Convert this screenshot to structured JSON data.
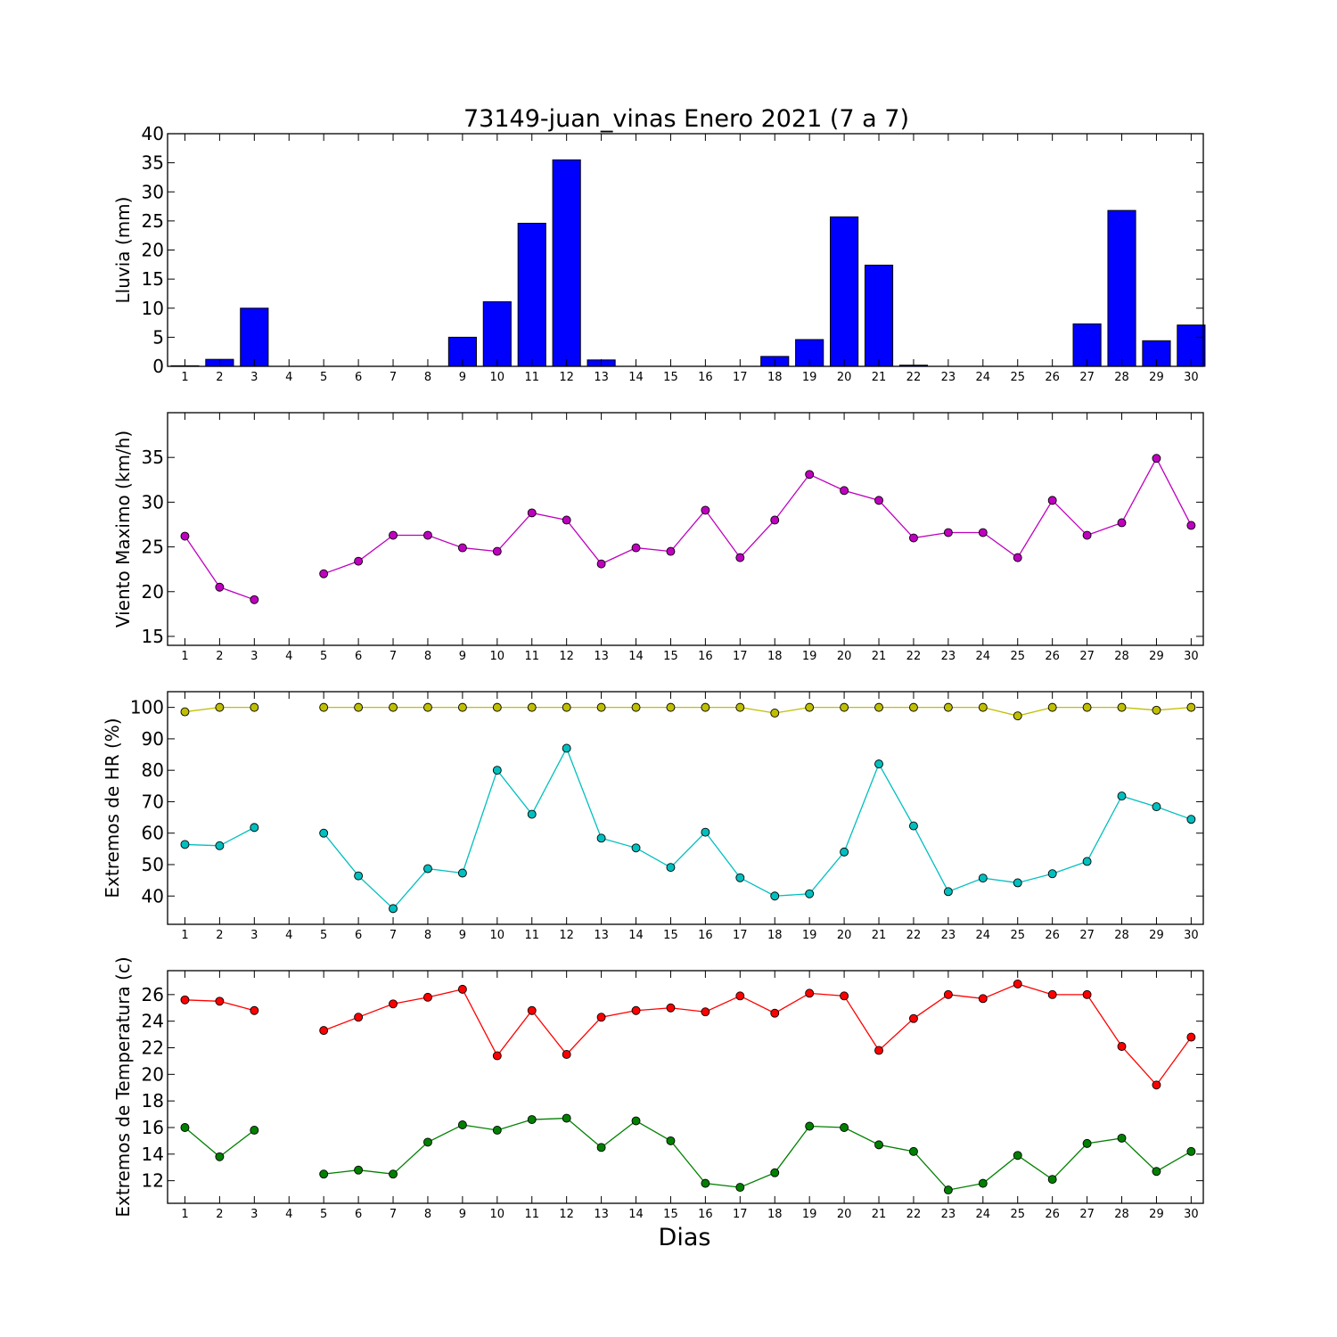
{
  "chart_data": {
    "title": "73149-juan_vinas Enero 2021  (7 a 7)",
    "xlabel": "Dias",
    "days": [
      1,
      2,
      3,
      4,
      5,
      6,
      7,
      8,
      9,
      10,
      11,
      12,
      13,
      14,
      15,
      16,
      17,
      18,
      19,
      20,
      21,
      22,
      23,
      24,
      25,
      26,
      27,
      28,
      29,
      30
    ],
    "panels": [
      {
        "id": "lluvia",
        "type": "bar",
        "ylabel": "Lluvia (mm)",
        "ylim": [
          0,
          40
        ],
        "yticks": [
          0,
          5,
          10,
          15,
          20,
          25,
          30,
          35,
          40
        ],
        "series": [
          {
            "color": "#0000ff",
            "values": [
              0.1,
              1.2,
              10.0,
              0,
              0,
              0,
              0,
              0,
              5.0,
              11.1,
              24.6,
              35.5,
              1.1,
              0,
              0,
              0,
              0,
              1.7,
              4.6,
              25.7,
              17.4,
              0.2,
              0,
              0,
              0,
              0,
              7.3,
              26.8,
              4.4,
              7.1
            ]
          }
        ]
      },
      {
        "id": "viento",
        "type": "line",
        "ylabel": "Viento Maximo (km/h)",
        "ylim": [
          14,
          40
        ],
        "yticks": [
          15,
          20,
          25,
          30,
          35
        ],
        "series": [
          {
            "color": "#bf00bf",
            "values": [
              26.2,
              20.5,
              19.1,
              null,
              22.0,
              23.4,
              26.3,
              26.3,
              24.9,
              24.5,
              28.8,
              28.0,
              23.1,
              24.9,
              24.5,
              29.1,
              23.8,
              28.0,
              33.1,
              31.3,
              30.2,
              26.0,
              26.6,
              26.6,
              23.8,
              30.2,
              26.3,
              27.7,
              34.9,
              27.4
            ]
          }
        ]
      },
      {
        "id": "hr",
        "type": "line",
        "ylabel": "Extremos de HR (%)",
        "ylim": [
          31,
          105
        ],
        "yticks": [
          40,
          50,
          60,
          70,
          80,
          90,
          100
        ],
        "series": [
          {
            "color": "#bfbf00",
            "values": [
              98.6,
              100,
              100,
              null,
              100,
              100,
              100,
              100,
              100,
              100,
              100,
              100,
              100,
              100,
              100,
              100,
              100,
              98.2,
              100,
              100,
              100,
              100,
              100,
              100,
              97.3,
              100,
              100,
              100,
              99.1,
              100
            ]
          },
          {
            "color": "#00bfbf",
            "values": [
              56.4,
              56.0,
              61.8,
              null,
              60.0,
              46.4,
              36.0,
              48.7,
              47.3,
              80.0,
              66.0,
              87.0,
              58.4,
              55.3,
              49.1,
              60.3,
              45.8,
              40.0,
              40.7,
              54.0,
              82.0,
              62.3,
              41.4,
              45.7,
              44.2,
              47.1,
              51.0,
              71.8,
              68.4,
              64.4
            ]
          }
        ]
      },
      {
        "id": "temp",
        "type": "line",
        "ylabel": "Extremos de Temperatura (c)",
        "ylim": [
          10.3,
          27.8
        ],
        "yticks": [
          12,
          14,
          16,
          18,
          20,
          22,
          24,
          26
        ],
        "series": [
          {
            "color": "#ff0000",
            "values": [
              25.6,
              25.5,
              24.8,
              null,
              23.3,
              24.3,
              25.3,
              25.8,
              26.4,
              21.4,
              24.8,
              21.5,
              24.3,
              24.8,
              25.0,
              24.7,
              25.9,
              24.6,
              26.1,
              25.9,
              21.8,
              24.2,
              26.0,
              25.7,
              26.8,
              26.0,
              26.0,
              22.1,
              19.2,
              22.8
            ]
          },
          {
            "color": "#008000",
            "values": [
              16.0,
              13.8,
              15.8,
              null,
              12.5,
              12.8,
              12.5,
              14.9,
              16.2,
              15.8,
              16.6,
              16.7,
              14.5,
              16.5,
              15.0,
              11.8,
              11.5,
              12.6,
              16.1,
              16.0,
              14.7,
              14.2,
              11.3,
              11.8,
              13.9,
              12.1,
              14.8,
              15.2,
              12.7,
              14.2
            ]
          }
        ]
      }
    ]
  }
}
